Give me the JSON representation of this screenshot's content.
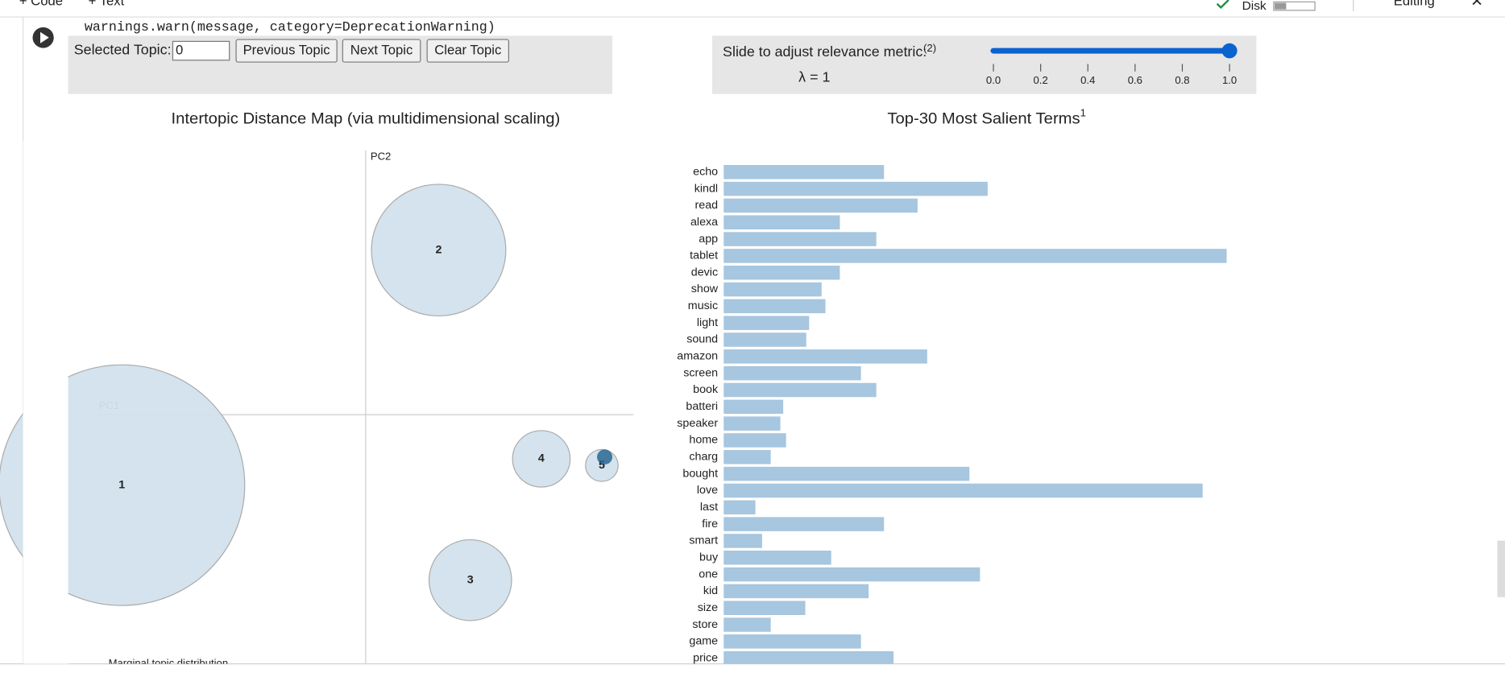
{
  "toolbar": {
    "add_code": "+ Code",
    "add_text": "+ Text",
    "disk": "Disk",
    "mode": "Editing"
  },
  "output": {
    "code_line": "warnings.warn(message, category=DeprecationWarning)"
  },
  "controls": {
    "selected_topic_label": "Selected Topic:",
    "selected_topic_input": "0",
    "buttons": [
      "Previous Topic",
      "Next Topic",
      "Clear Topic"
    ],
    "slider_label": "Slide to adjust relevance metric:",
    "slider_label_note": "(2)",
    "lambda_text": "λ = 1",
    "slider": {
      "value": 1,
      "min": 0,
      "max": 1,
      "ticks": [
        {
          "value": 0,
          "label": "0.0"
        },
        {
          "value": 0.2,
          "label": "0.2"
        },
        {
          "value": 0.4,
          "label": "0.4"
        },
        {
          "value": 0.6,
          "label": "0.6"
        },
        {
          "value": 0.8,
          "label": "0.8"
        },
        {
          "value": 1,
          "label": "1.0"
        }
      ]
    }
  },
  "chart_data": [
    {
      "type": "scatter",
      "title": "Intertopic Distance Map (via multidimensional scaling)",
      "x_label": "PC1",
      "y_label": "PC2",
      "note": "Marginal topic distribution",
      "categories": [
        "1",
        "2",
        "3",
        "4",
        "5"
      ],
      "x": [
        -254,
        76,
        109,
        183,
        246
      ],
      "y": [
        -75,
        175,
        -176,
        -47,
        -54
      ],
      "sizes": [
        128,
        70,
        43,
        30,
        17
      ],
      "color": "#d2e1ec"
    },
    {
      "type": "bar",
      "orientation": "horizontal",
      "title": "Top-30 Most Salient Terms",
      "title_note": "1",
      "categories": [
        "echo",
        "kindl",
        "read",
        "alexa",
        "app",
        "tablet",
        "devic",
        "show",
        "music",
        "light",
        "sound",
        "amazon",
        "screen",
        "book",
        "batteri",
        "speaker",
        "home",
        "charg",
        "bought",
        "love",
        "last",
        "fire",
        "smart",
        "buy",
        "one",
        "kid",
        "size",
        "store",
        "game",
        "price"
      ],
      "values": [
        167,
        275,
        202,
        121,
        159,
        524,
        121,
        102,
        106,
        89,
        86,
        212,
        143,
        159,
        62,
        59,
        65,
        49,
        256,
        499,
        33,
        167,
        40,
        112,
        267,
        151,
        85,
        49,
        143,
        177
      ],
      "color": "#a7c6df"
    }
  ]
}
